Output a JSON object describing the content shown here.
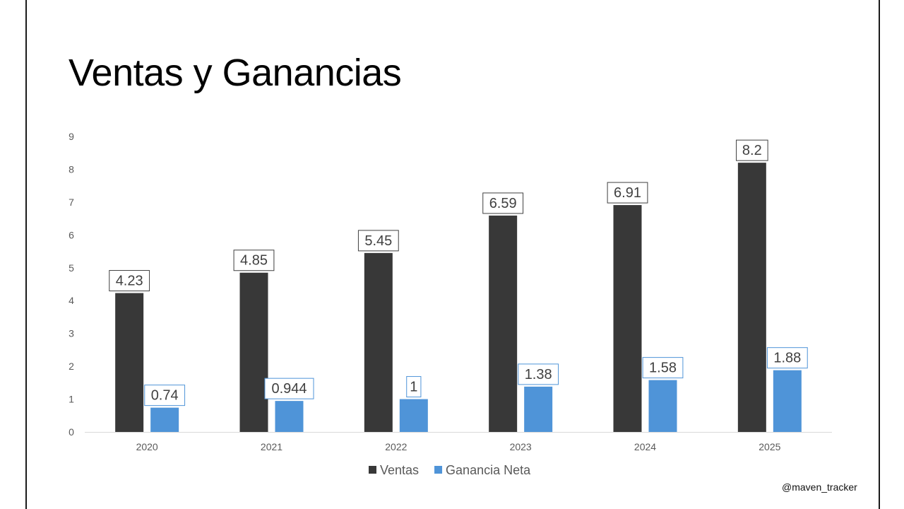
{
  "title": "Ventas y Ganancias",
  "watermark": "@maven_tracker",
  "chart_data": {
    "type": "bar",
    "categories": [
      "2020",
      "2021",
      "2022",
      "2023",
      "2024",
      "2025"
    ],
    "series": [
      {
        "name": "Ventas",
        "values": [
          4.23,
          4.85,
          5.45,
          6.59,
          6.91,
          8.2
        ],
        "labels": [
          "4.23",
          "4.85",
          "5.45",
          "6.59",
          "6.91",
          "8.2"
        ],
        "color": "#383838"
      },
      {
        "name": "Ganancia Neta",
        "values": [
          0.74,
          0.944,
          1,
          1.38,
          1.58,
          1.88
        ],
        "labels": [
          "0.74",
          "0.944",
          "1",
          "1.38",
          "1.58",
          "1.88"
        ],
        "color": "#4f94d8"
      }
    ],
    "yticks": [
      "0",
      "1",
      "2",
      "3",
      "4",
      "5",
      "6",
      "7",
      "8",
      "9"
    ],
    "ylim": [
      0,
      9
    ],
    "grid": false,
    "legend": "bottom"
  }
}
